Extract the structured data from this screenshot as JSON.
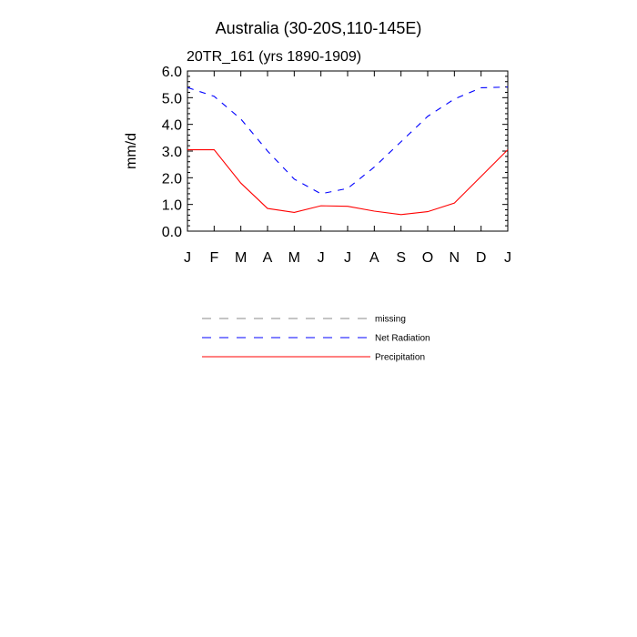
{
  "chart_data": {
    "type": "line",
    "title": "Australia (30-20S,110-145E)",
    "subtitle": "20TR_161 (yrs 1890-1909)",
    "ylabel": "mm/d",
    "xlabel": "",
    "ylim": [
      0,
      6
    ],
    "yticks": [
      "0.0",
      "1.0",
      "2.0",
      "3.0",
      "4.0",
      "5.0",
      "6.0"
    ],
    "categories": [
      "J",
      "F",
      "M",
      "A",
      "M",
      "J",
      "J",
      "A",
      "S",
      "O",
      "N",
      "D",
      "J"
    ],
    "series": [
      {
        "name": "Net Radiation",
        "color": "#0000ff",
        "style": "dashed",
        "values": [
          5.38,
          5.05,
          4.2,
          3.0,
          1.95,
          1.4,
          1.6,
          2.4,
          3.35,
          4.3,
          4.95,
          5.37,
          5.4
        ]
      },
      {
        "name": "Precipitation",
        "color": "#ff0000",
        "style": "solid",
        "values": [
          3.05,
          3.05,
          1.8,
          0.85,
          0.7,
          0.95,
          0.93,
          0.75,
          0.62,
          0.73,
          1.05,
          2.05,
          3.05
        ]
      }
    ],
    "legend": {
      "placement": "below",
      "entries": [
        {
          "label": "missing",
          "color": "#888888",
          "style": "dashed"
        },
        {
          "label": "Net Radiation",
          "color": "#0000ff",
          "style": "dashed"
        },
        {
          "label": "Precipitation",
          "color": "#ff0000",
          "style": "solid"
        }
      ]
    },
    "grid": false
  }
}
